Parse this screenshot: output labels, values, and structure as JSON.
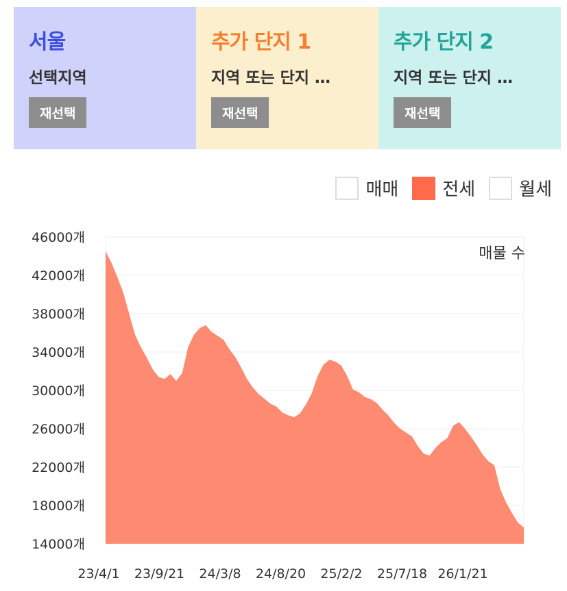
{
  "panels": [
    {
      "title": "서울",
      "subtitle": "선택지역",
      "button": "재선택",
      "color": "#3d4fe0"
    },
    {
      "title": "추가 단지 1",
      "subtitle": "지역 또는 단지 …",
      "button": "재선택",
      "color": "#f57f2f"
    },
    {
      "title": "추가 단지 2",
      "subtitle": "지역 또는 단지 …",
      "button": "재선택",
      "color": "#23a49a"
    }
  ],
  "legend": [
    {
      "label": "매매",
      "active": false
    },
    {
      "label": "전세",
      "active": true
    },
    {
      "label": "월세",
      "active": false
    }
  ],
  "chart_data": {
    "type": "area",
    "series_label": "매물 수",
    "unit_suffix": "개",
    "ylim": [
      14000,
      46000
    ],
    "yticks": [
      "46000개",
      "42000개",
      "38000개",
      "34000개",
      "30000개",
      "26000개",
      "22000개",
      "18000개",
      "14000개"
    ],
    "xticks": [
      "23/4/1",
      "23/9/21",
      "24/3/8",
      "24/8/20",
      "25/2/2",
      "25/7/18",
      "26/1/21"
    ],
    "grid": true,
    "color": "#ff8a72",
    "values": [
      44500,
      43300,
      41800,
      40200,
      38000,
      35800,
      34500,
      33400,
      32200,
      31400,
      31200,
      31700,
      31000,
      31800,
      34500,
      35800,
      36500,
      36800,
      36100,
      35700,
      35300,
      34300,
      33500,
      32400,
      31200,
      30300,
      29600,
      29100,
      28600,
      28300,
      27700,
      27400,
      27200,
      27600,
      28500,
      29700,
      31500,
      32700,
      33200,
      33000,
      32600,
      31500,
      30100,
      29800,
      29300,
      29100,
      28700,
      28000,
      27400,
      26600,
      26000,
      25600,
      25200,
      24200,
      23400,
      23200,
      24000,
      24600,
      25000,
      26300,
      26700,
      26000,
      25200,
      24300,
      23300,
      22600,
      22200,
      19700,
      18300,
      17200,
      16200,
      15700
    ]
  }
}
